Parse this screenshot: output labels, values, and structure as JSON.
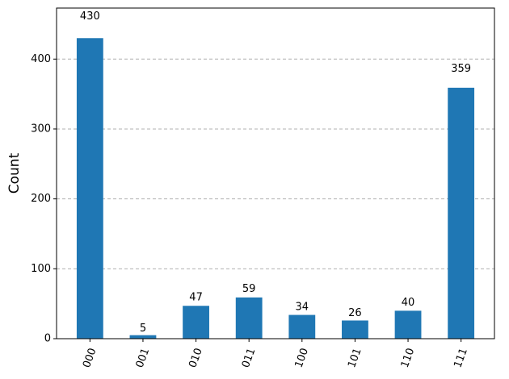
{
  "chart_data": {
    "type": "bar",
    "y_label": "Count",
    "categories": [
      "000",
      "001",
      "010",
      "011",
      "100",
      "101",
      "110",
      "111"
    ],
    "values": [
      430,
      5,
      47,
      59,
      34,
      26,
      40,
      359
    ],
    "color": "#1f77b4",
    "ylim": [
      0,
      473
    ],
    "yticks": [
      0,
      100,
      200,
      300,
      400
    ],
    "grid": true
  }
}
